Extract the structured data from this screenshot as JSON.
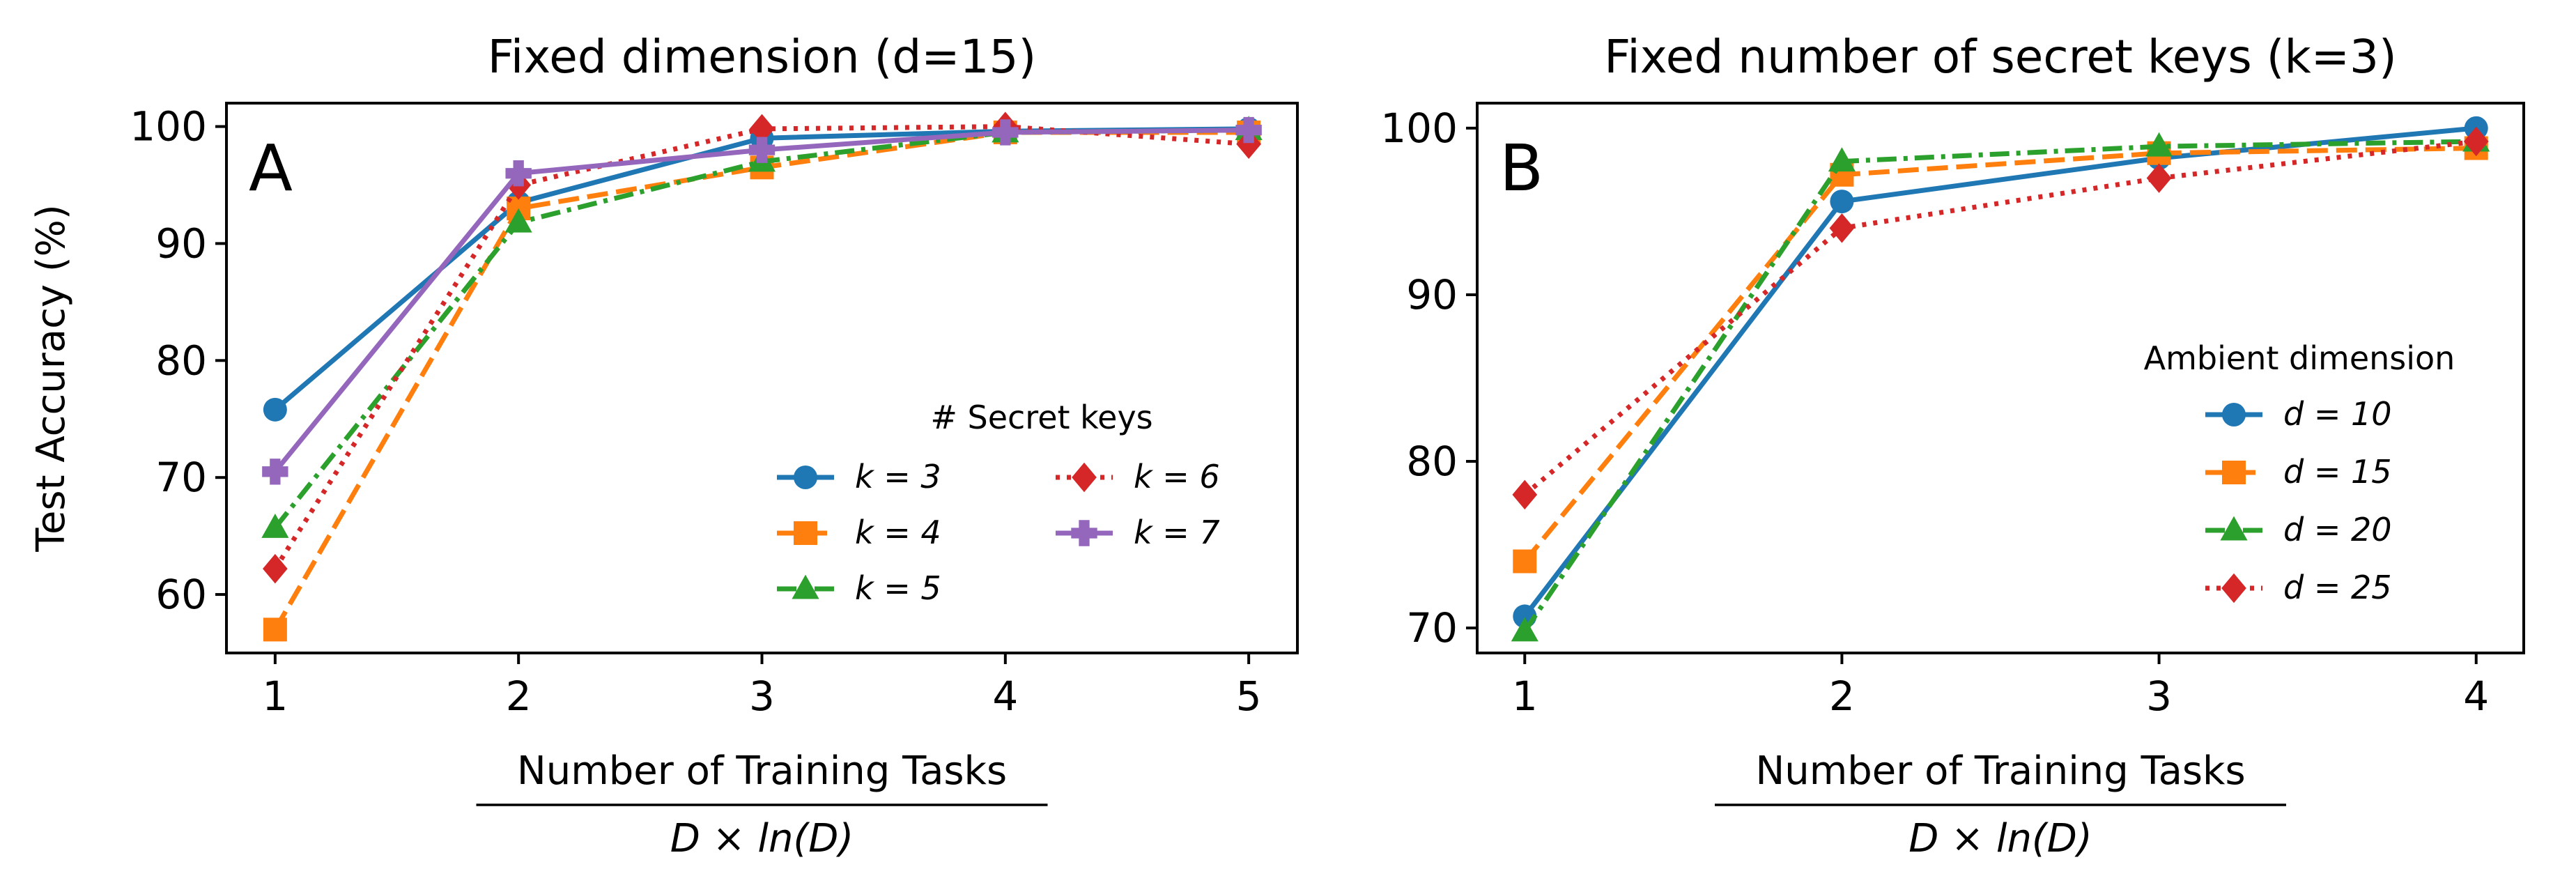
{
  "chart_data": [
    {
      "type": "line",
      "panel_label": "A",
      "title": "Fixed dimension (d=15)",
      "xlabel_numerator": "Number of Training Tasks",
      "xlabel_denominator": "D × ln(D)",
      "ylabel": "Test Accuracy (%)",
      "x": [
        1,
        2,
        3,
        4,
        5
      ],
      "xlim": [
        0.8,
        5.2
      ],
      "ylim": [
        55,
        102
      ],
      "yticks": [
        60,
        70,
        80,
        90,
        100
      ],
      "xticks": [
        1,
        2,
        3,
        4,
        5
      ],
      "grid": false,
      "legend": {
        "title": "# Secret keys",
        "placement": "lower-right",
        "columns": 2
      },
      "series": [
        {
          "name": "k = 3",
          "color": "#1f77b4",
          "linestyle": "solid",
          "marker": "circle",
          "values": [
            75.8,
            93.5,
            99.0,
            99.6,
            99.8
          ]
        },
        {
          "name": "k = 4",
          "color": "#ff7f0e",
          "linestyle": "dashed",
          "marker": "square",
          "values": [
            57.0,
            93.0,
            96.5,
            99.5,
            99.5
          ]
        },
        {
          "name": "k = 5",
          "color": "#2ca02c",
          "linestyle": "dashdot",
          "marker": "triangle",
          "values": [
            65.7,
            91.8,
            97.0,
            99.5,
            99.7
          ]
        },
        {
          "name": "k = 6",
          "color": "#d62728",
          "linestyle": "dotted",
          "marker": "diamond",
          "values": [
            62.2,
            95.0,
            99.8,
            100.0,
            98.5
          ]
        },
        {
          "name": "k = 7",
          "color": "#9467bd",
          "linestyle": "solid",
          "marker": "plus",
          "values": [
            70.5,
            96.0,
            98.0,
            99.5,
            99.7
          ]
        }
      ]
    },
    {
      "type": "line",
      "panel_label": "B",
      "title": "Fixed number of secret keys (k=3)",
      "xlabel_numerator": "Number of Training Tasks",
      "xlabel_denominator": "D × ln(D)",
      "ylabel": "",
      "x": [
        1,
        2,
        3,
        4
      ],
      "xlim": [
        0.85,
        4.15
      ],
      "ylim": [
        68.5,
        101.5
      ],
      "yticks": [
        70,
        80,
        90,
        100
      ],
      "xticks": [
        1,
        2,
        3,
        4
      ],
      "grid": false,
      "legend": {
        "title": "Ambient dimension",
        "placement": "lower-right",
        "columns": 1
      },
      "series": [
        {
          "name": "d = 10",
          "color": "#1f77b4",
          "linestyle": "solid",
          "marker": "circle",
          "values": [
            70.7,
            95.6,
            98.2,
            100.0
          ]
        },
        {
          "name": "d = 15",
          "color": "#ff7f0e",
          "linestyle": "dashed",
          "marker": "square",
          "values": [
            74.0,
            97.2,
            98.5,
            98.8
          ]
        },
        {
          "name": "d = 20",
          "color": "#2ca02c",
          "linestyle": "dashdot",
          "marker": "triangle",
          "values": [
            69.8,
            98.0,
            98.9,
            99.2
          ]
        },
        {
          "name": "d = 25",
          "color": "#d62728",
          "linestyle": "dotted",
          "marker": "diamond",
          "values": [
            78.0,
            94.0,
            97.0,
            99.2
          ]
        }
      ]
    }
  ]
}
